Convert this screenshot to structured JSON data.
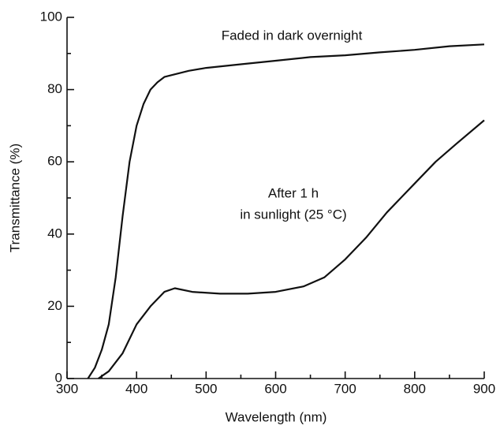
{
  "chart_data": {
    "type": "line",
    "xlabel": "Wavelength (nm)",
    "ylabel": "Transmittance (%)",
    "xlim": [
      300,
      900
    ],
    "ylim": [
      0,
      100
    ],
    "xticks": [
      300,
      400,
      500,
      600,
      700,
      800,
      900
    ],
    "yticks": [
      0,
      20,
      40,
      60,
      80,
      100
    ],
    "x_minor_ticks": [
      350,
      450,
      550,
      650,
      750,
      850
    ],
    "y_minor_ticks": [
      10,
      30,
      50,
      70,
      90
    ],
    "color": "#111111",
    "annotations": [
      "Faded in dark overnight",
      "After 1 h",
      "in sunlight (25 °C)"
    ],
    "series": [
      {
        "x": [
          330,
          340,
          350,
          360,
          370,
          380,
          390,
          400,
          410,
          420,
          430,
          440,
          450,
          475,
          500,
          550,
          600,
          650,
          700,
          750,
          800,
          850,
          900
        ],
        "values": [
          0,
          3,
          8,
          15,
          28,
          45,
          60,
          70,
          76,
          80,
          82,
          83.5,
          84,
          85.2,
          86,
          87,
          88,
          89,
          89.5,
          90.3,
          91,
          92,
          92.5
        ]
      },
      {
        "x": [
          345,
          360,
          380,
          400,
          420,
          440,
          455,
          480,
          520,
          560,
          600,
          640,
          670,
          700,
          730,
          760,
          800,
          830,
          860,
          900
        ],
        "values": [
          0,
          2,
          7,
          15,
          20,
          24,
          25,
          24,
          23.5,
          23.5,
          24,
          25.5,
          28,
          33,
          39,
          46,
          54,
          60,
          65,
          71.5
        ]
      }
    ]
  }
}
